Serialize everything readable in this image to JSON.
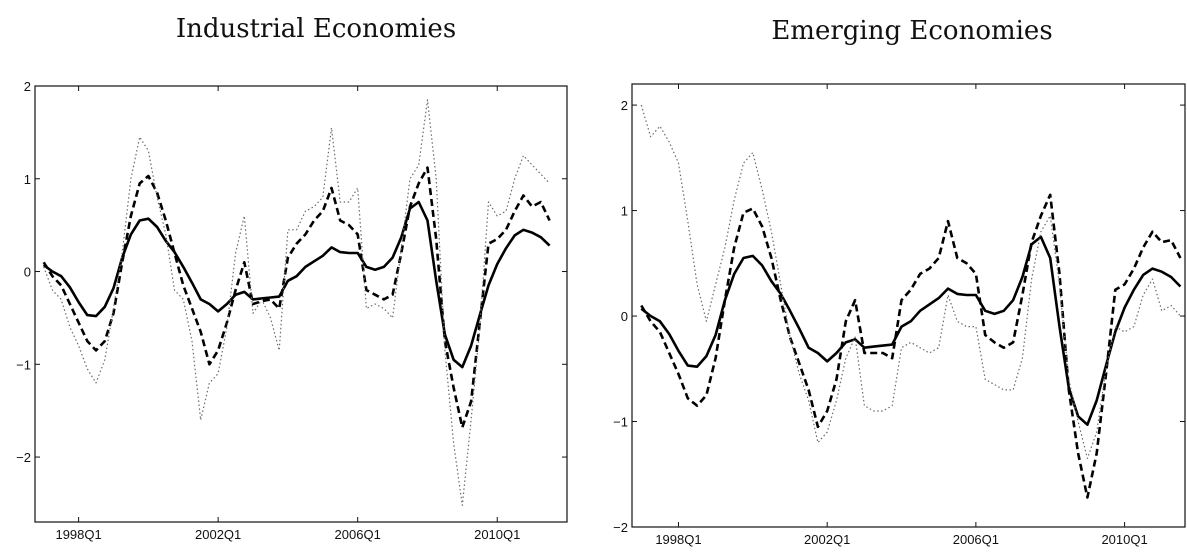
{
  "chart_data": [
    {
      "type": "line",
      "title": "Industrial Economies",
      "xlabel": "",
      "ylabel": "",
      "x_start": "1997Q1",
      "x_ticks": [
        "1998Q1",
        "2002Q1",
        "2006Q1",
        "2010Q1"
      ],
      "x_tick_index": [
        4,
        20,
        36,
        52
      ],
      "xlim_index": [
        -1,
        60
      ],
      "ylim": [
        -2.7,
        2.0
      ],
      "y_ticks": [
        -2,
        -1,
        0,
        1,
        2
      ],
      "grid": false,
      "legend": "none",
      "series": [
        {
          "style": "solid",
          "values": [
            0.07,
            0.0,
            -0.05,
            -0.17,
            -0.33,
            -0.47,
            -0.48,
            -0.38,
            -0.18,
            0.15,
            0.4,
            0.55,
            0.57,
            0.48,
            0.33,
            0.21,
            0.05,
            -0.12,
            -0.3,
            -0.35,
            -0.43,
            -0.35,
            -0.25,
            -0.22,
            -0.3,
            -0.29,
            -0.28,
            -0.27,
            -0.1,
            -0.05,
            0.05,
            0.11,
            0.17,
            0.26,
            0.21,
            0.2,
            0.2,
            0.05,
            0.02,
            0.05,
            0.15,
            0.37,
            0.68,
            0.75,
            0.55,
            -0.1,
            -0.68,
            -0.95,
            -1.03,
            -0.8,
            -0.47,
            -0.15,
            0.08,
            0.25,
            0.39,
            0.45,
            0.42,
            0.37,
            0.28
          ]
        },
        {
          "style": "dashed",
          "values": [
            0.1,
            -0.05,
            -0.15,
            -0.35,
            -0.55,
            -0.75,
            -0.85,
            -0.75,
            -0.45,
            0.1,
            0.6,
            0.95,
            1.03,
            0.85,
            0.55,
            0.2,
            -0.15,
            -0.4,
            -0.65,
            -1.0,
            -0.85,
            -0.55,
            -0.2,
            0.1,
            -0.35,
            -0.32,
            -0.3,
            -0.4,
            0.15,
            0.3,
            0.4,
            0.55,
            0.65,
            0.9,
            0.55,
            0.5,
            0.4,
            -0.2,
            -0.25,
            -0.3,
            -0.25,
            0.2,
            0.7,
            0.95,
            1.12,
            0.35,
            -0.75,
            -1.25,
            -1.68,
            -1.4,
            -0.55,
            0.3,
            0.35,
            0.45,
            0.65,
            0.82,
            0.7,
            0.75,
            0.55
          ]
        },
        {
          "style": "dotted",
          "values": [
            0.05,
            -0.2,
            -0.3,
            -0.6,
            -0.8,
            -1.05,
            -1.2,
            -0.95,
            -0.4,
            0.2,
            1.0,
            1.45,
            1.3,
            0.8,
            0.4,
            -0.2,
            -0.3,
            -0.75,
            -1.6,
            -1.2,
            -1.1,
            -0.6,
            0.2,
            0.6,
            -0.45,
            -0.3,
            -0.5,
            -0.85,
            0.45,
            0.45,
            0.65,
            0.7,
            0.8,
            1.55,
            0.75,
            0.75,
            0.9,
            -0.4,
            -0.35,
            -0.4,
            -0.5,
            0.25,
            1.0,
            1.15,
            1.85,
            1.0,
            -0.85,
            -1.85,
            -2.52,
            -1.6,
            -0.6,
            0.75,
            0.6,
            0.65,
            1.0,
            1.25,
            1.15,
            1.05,
            0.95
          ]
        }
      ]
    },
    {
      "type": "line",
      "title": "Emerging Economies",
      "xlabel": "",
      "ylabel": "",
      "x_start": "1997Q1",
      "x_ticks": [
        "1998Q1",
        "2002Q1",
        "2006Q1",
        "2010Q1"
      ],
      "x_tick_index": [
        4,
        20,
        36,
        52
      ],
      "xlim_index": [
        -1,
        58.5
      ],
      "ylim": [
        -2.0,
        2.2
      ],
      "y_ticks": [
        -2,
        -1,
        0,
        1,
        2
      ],
      "grid": false,
      "legend": "none",
      "series": [
        {
          "style": "solid",
          "values": [
            0.07,
            0.0,
            -0.05,
            -0.17,
            -0.33,
            -0.47,
            -0.48,
            -0.38,
            -0.18,
            0.15,
            0.4,
            0.55,
            0.57,
            0.48,
            0.33,
            0.21,
            0.05,
            -0.12,
            -0.3,
            -0.35,
            -0.43,
            -0.35,
            -0.25,
            -0.22,
            -0.3,
            -0.29,
            -0.28,
            -0.27,
            -0.1,
            -0.05,
            0.05,
            0.11,
            0.17,
            0.26,
            0.21,
            0.2,
            0.2,
            0.05,
            0.02,
            0.05,
            0.15,
            0.37,
            0.68,
            0.75,
            0.55,
            -0.1,
            -0.68,
            -0.95,
            -1.03,
            -0.8,
            -0.47,
            -0.15,
            0.08,
            0.25,
            0.39,
            0.45,
            0.42,
            0.37,
            0.28
          ]
        },
        {
          "style": "dashed",
          "values": [
            0.1,
            -0.05,
            -0.15,
            -0.35,
            -0.55,
            -0.78,
            -0.85,
            -0.75,
            -0.4,
            0.15,
            0.65,
            0.98,
            1.02,
            0.85,
            0.55,
            0.15,
            -0.2,
            -0.45,
            -0.7,
            -1.05,
            -0.9,
            -0.6,
            -0.05,
            0.15,
            -0.35,
            -0.35,
            -0.35,
            -0.4,
            0.15,
            0.25,
            0.4,
            0.45,
            0.55,
            0.9,
            0.55,
            0.5,
            0.4,
            -0.18,
            -0.25,
            -0.3,
            -0.25,
            0.2,
            0.7,
            0.95,
            1.15,
            0.4,
            -0.7,
            -1.3,
            -1.72,
            -1.3,
            -0.55,
            0.25,
            0.3,
            0.45,
            0.65,
            0.8,
            0.7,
            0.72,
            0.55
          ]
        },
        {
          "style": "dotted",
          "values": [
            2.0,
            1.7,
            1.8,
            1.65,
            1.45,
            0.9,
            0.3,
            -0.05,
            0.3,
            0.65,
            1.1,
            1.45,
            1.55,
            1.2,
            0.8,
            0.3,
            -0.2,
            -0.55,
            -0.8,
            -1.2,
            -1.1,
            -0.8,
            -0.4,
            -0.2,
            -0.85,
            -0.9,
            -0.9,
            -0.85,
            -0.3,
            -0.25,
            -0.3,
            -0.35,
            -0.3,
            0.2,
            -0.05,
            -0.1,
            -0.1,
            -0.6,
            -0.65,
            -0.7,
            -0.7,
            -0.4,
            0.35,
            0.8,
            0.95,
            0.3,
            -0.6,
            -1.0,
            -1.35,
            -1.1,
            -0.5,
            -0.1,
            -0.15,
            -0.1,
            0.2,
            0.35,
            0.05,
            0.1,
            0.0
          ]
        }
      ]
    }
  ]
}
